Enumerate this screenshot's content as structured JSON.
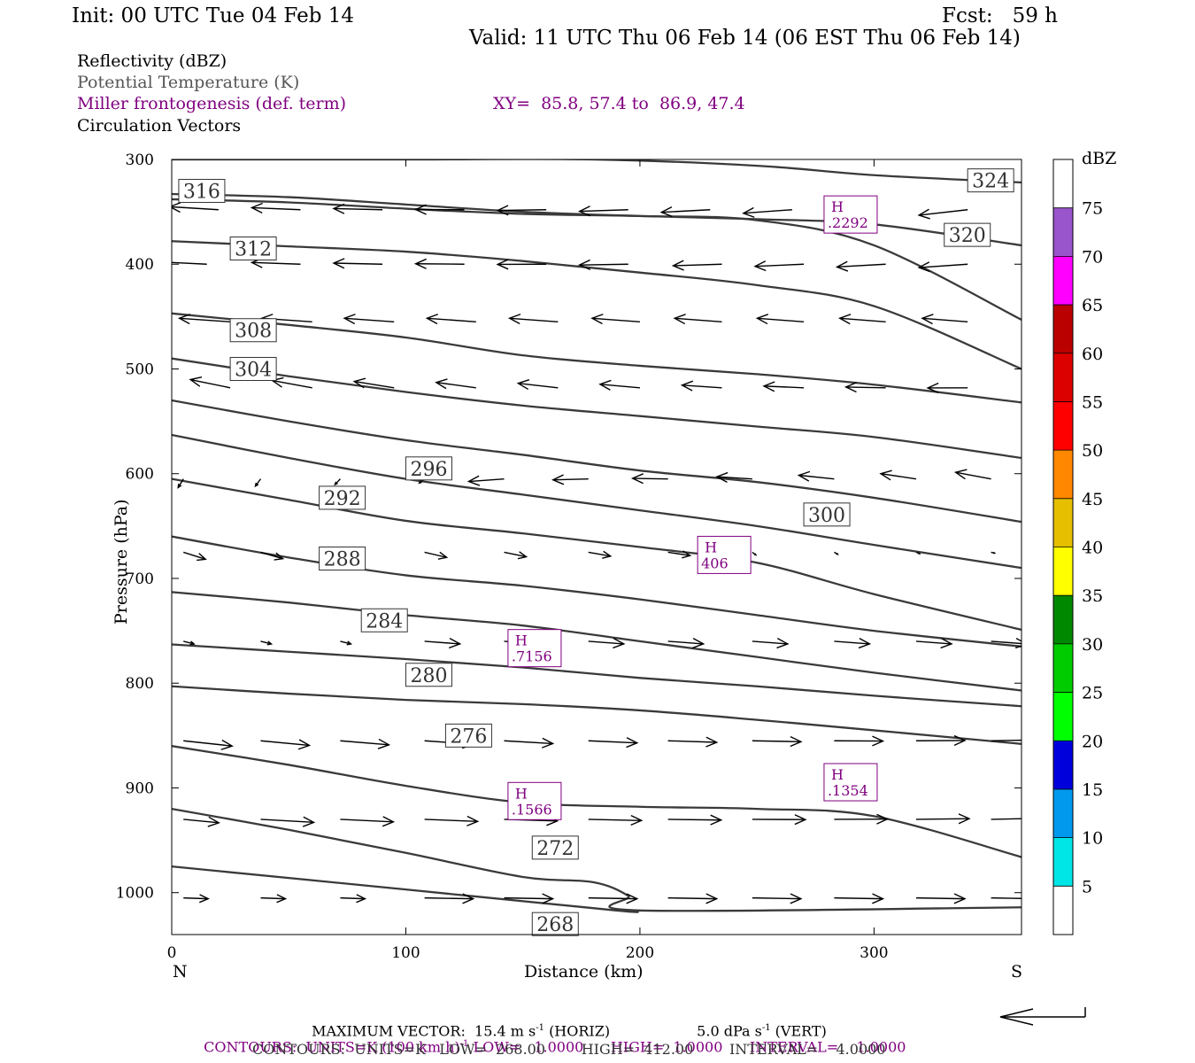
{
  "header": {
    "init": "Init: 00 UTC Tue 04 Feb 14",
    "fcst": "Fcst:   59 h",
    "valid": "Valid: 11 UTC Thu 06 Feb 14 (06 EST Thu 06 Feb 14)"
  },
  "fields": {
    "reflectivity": "Reflectivity (dBZ)",
    "theta": "Potential Temperature (K)",
    "frontogenesis": "Miller frontogenesis (def. term)",
    "xy": "XY=  85.8, 57.4 to  86.9, 47.4",
    "vectors": "Circulation Vectors"
  },
  "footer": {
    "max_vector": "MAXIMUM VECTOR:  15.4 m s",
    "max_vector_unit": "(HORIZ)",
    "vert": "5.0 dPa s",
    "vert_unit": "(VERT)",
    "contours1": "CONTOURS:  UNITS=K (100 km h)",
    "contours1_rest": " LOW=   1.0000      HIGH=  1.0000      INTERVAL=    1.0000",
    "contours2": "CONTOURS:  UNITS=K   LOW=  268.00        HIGH=  412.00        INTERVAL=    4.0000",
    "exp": "-1"
  },
  "colorbar": {
    "unit": "dBZ",
    "labels": [
      "5",
      "10",
      "15",
      "20",
      "25",
      "30",
      "35",
      "40",
      "45",
      "50",
      "55",
      "60",
      "65",
      "70",
      "75"
    ],
    "colors": [
      "#00e5e5",
      "#0099ee",
      "#0000dd",
      "#00ff00",
      "#00cc00",
      "#008800",
      "#ffff00",
      "#e5bf00",
      "#ff8800",
      "#ff0000",
      "#dd0000",
      "#bb0000",
      "#ff00ff",
      "#9955cc",
      "#ffffff"
    ]
  },
  "chart_data": {
    "type": "contour",
    "xlabel": "Distance (km)",
    "ylabel": "Pressure (hPa)",
    "xlim": [
      0,
      363
    ],
    "ylim": [
      1040,
      300
    ],
    "xticks": [
      "0",
      "100",
      "200",
      "300"
    ],
    "yticks": [
      "300",
      "400",
      "500",
      "600",
      "700",
      "800",
      "900",
      "1000"
    ],
    "x_left_label": "N",
    "x_right_label": "S",
    "theta_contours": [
      {
        "label": "324",
        "x": [
          0,
          100,
          180,
          250,
          300,
          363
        ],
        "y": [
          300,
          300,
          300,
          306,
          315,
          322
        ],
        "label_at": [
          340,
          320
        ]
      },
      {
        "label": "320",
        "x": [
          0,
          50,
          100,
          150,
          200,
          250,
          300,
          363
        ],
        "y": [
          333,
          336,
          343,
          350,
          354,
          357,
          362,
          382
        ],
        "label_at": [
          330,
          372
        ]
      },
      {
        "label": "316",
        "x": [
          0,
          50,
          100,
          150,
          200,
          250,
          300,
          363
        ],
        "y": [
          338,
          341,
          347,
          352,
          354,
          358,
          382,
          453
        ],
        "label_at": [
          3,
          330
        ]
      },
      {
        "label": "312",
        "x": [
          0,
          50,
          100,
          150,
          200,
          250,
          300,
          363
        ],
        "y": [
          378,
          383,
          388,
          397,
          408,
          420,
          440,
          500
        ],
        "label_at": [
          25,
          385
        ]
      },
      {
        "label": "308",
        "x": [
          0,
          50,
          100,
          150,
          200,
          250,
          300,
          363
        ],
        "y": [
          447,
          458,
          470,
          487,
          497,
          505,
          515,
          532
        ],
        "label_at": [
          25,
          463
        ]
      },
      {
        "label": "304",
        "x": [
          0,
          50,
          100,
          150,
          200,
          250,
          300,
          363
        ],
        "y": [
          490,
          507,
          522,
          535,
          545,
          555,
          565,
          585
        ],
        "label_at": [
          25,
          500
        ]
      },
      {
        "label": "300",
        "x": [
          0,
          50,
          100,
          150,
          200,
          250,
          300,
          363
        ],
        "y": [
          530,
          550,
          568,
          582,
          597,
          608,
          623,
          646
        ],
        "label_at": [
          270,
          639
        ]
      },
      {
        "label": "296",
        "x": [
          0,
          50,
          100,
          150,
          200,
          250,
          300,
          363
        ],
        "y": [
          563,
          585,
          605,
          620,
          635,
          650,
          668,
          690
        ],
        "label_at": [
          100,
          595
        ]
      },
      {
        "label": "292",
        "x": [
          0,
          50,
          100,
          150,
          200,
          250,
          300,
          363
        ],
        "y": [
          605,
          625,
          645,
          657,
          670,
          685,
          715,
          749
        ],
        "label_at": [
          63,
          623
        ]
      },
      {
        "label": "288",
        "x": [
          0,
          50,
          100,
          150,
          200,
          250,
          300,
          363
        ],
        "y": [
          660,
          680,
          697,
          707,
          720,
          735,
          750,
          765
        ],
        "label_at": [
          63,
          681
        ]
      },
      {
        "label": "284",
        "x": [
          0,
          50,
          100,
          150,
          200,
          250,
          300,
          363
        ],
        "y": [
          713,
          723,
          735,
          745,
          760,
          775,
          790,
          807
        ],
        "label_at": [
          81,
          740
        ]
      },
      {
        "label": "280",
        "x": [
          0,
          50,
          100,
          150,
          200,
          250,
          300,
          363
        ],
        "y": [
          763,
          770,
          777,
          785,
          795,
          803,
          812,
          822
        ],
        "label_at": [
          100,
          792
        ]
      },
      {
        "label": "276",
        "x": [
          0,
          50,
          100,
          150,
          200,
          250,
          300,
          363
        ],
        "y": [
          803,
          810,
          816,
          820,
          826,
          835,
          845,
          858
        ],
        "label_at": [
          117,
          850
        ]
      },
      {
        "label": "272",
        "x": [
          0,
          50,
          100,
          150,
          200,
          250,
          300,
          363
        ],
        "y": [
          860,
          878,
          898,
          914,
          918,
          920,
          927,
          966
        ],
        "label_at": [
          154,
          957
        ]
      },
      {
        "label": "268",
        "x": [
          0,
          50,
          100,
          150,
          180,
          195,
          200,
          363
        ],
        "y": [
          920,
          940,
          962,
          985,
          990,
          1003,
          1017,
          1014
        ],
        "label_at": [
          154,
          1030
        ]
      },
      {
        "label": "",
        "x": [
          0,
          100,
          190,
          197
        ],
        "y": [
          975,
          997,
          1017,
          1017
        ]
      }
    ],
    "frontogenesis_highs": [
      {
        "label": "H",
        "value": ".2292",
        "x": 290,
        "y": 372
      },
      {
        "label": "H",
        "value": "406",
        "x": 236,
        "y": 697
      },
      {
        "label": "H",
        "value": ".7156",
        "x": 155,
        "y": 786
      },
      {
        "label": "H",
        "value": ".1354",
        "x": 290,
        "y": 914
      },
      {
        "label": "H",
        "value": ".1566",
        "x": 155,
        "y": 932
      }
    ],
    "max_vector_ms": 15.4,
    "max_vertical_dpa_s": 5.0
  }
}
